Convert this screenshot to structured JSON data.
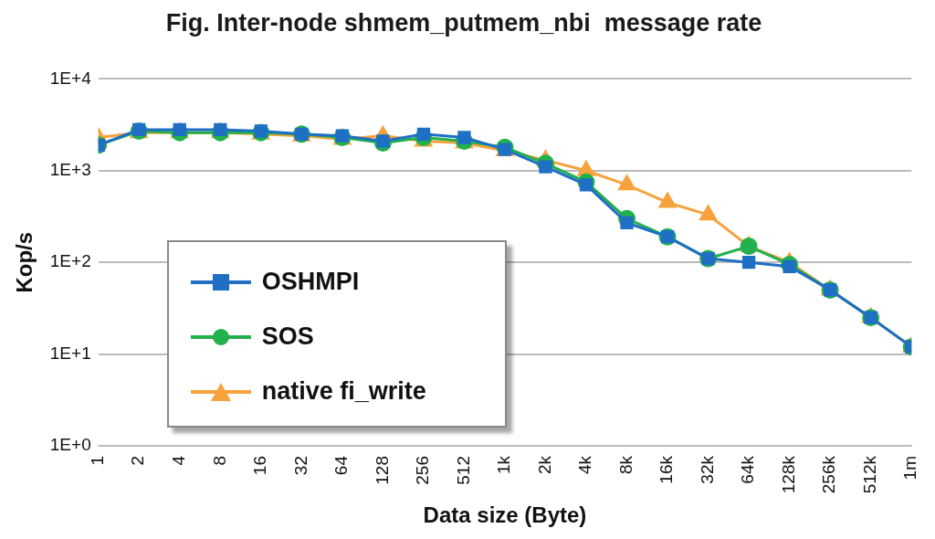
{
  "chart_data": {
    "type": "line",
    "title": "Fig. Inter-node shmem_putmem_nbi  message rate",
    "x_label": "Data size (Byte)",
    "y_label": "Kop/s",
    "categories": [
      "1",
      "2",
      "4",
      "8",
      "16",
      "32",
      "64",
      "128",
      "256",
      "512",
      "1k",
      "2k",
      "4k",
      "8k",
      "16k",
      "32k",
      "64k",
      "128k",
      "256k",
      "512k",
      "1m"
    ],
    "series": [
      {
        "name": "OSHMPI",
        "color": "#1f6fc5",
        "marker": "square",
        "values": [
          1900,
          2800,
          2800,
          2800,
          2700,
          2500,
          2400,
          2100,
          2500,
          2300,
          1700,
          1100,
          700,
          270,
          190,
          110,
          100,
          90,
          50,
          25,
          12
        ]
      },
      {
        "name": "SOS",
        "color": "#22b14c",
        "marker": "circle",
        "values": [
          1900,
          2700,
          2600,
          2600,
          2600,
          2500,
          2300,
          2000,
          2300,
          2100,
          1800,
          1200,
          750,
          300,
          190,
          110,
          150,
          95,
          50,
          25,
          12
        ]
      },
      {
        "name": "native fi_write",
        "color": "#f7a23c",
        "marker": "triangle",
        "values": [
          2300,
          2600,
          2600,
          2600,
          2500,
          2400,
          2200,
          2400,
          2100,
          2000,
          1650,
          1300,
          1000,
          700,
          450,
          330,
          150,
          100,
          50,
          25,
          12
        ]
      }
    ],
    "log": "y",
    "ylim": [
      1,
      10000
    ],
    "yticks": [
      {
        "value": 1,
        "label": "1E+0"
      },
      {
        "value": 10,
        "label": "1E+1"
      },
      {
        "value": 100,
        "label": "1E+2"
      },
      {
        "value": 1000,
        "label": "1E+3"
      },
      {
        "value": 10000,
        "label": "1E+4"
      }
    ],
    "grid": true,
    "legend": "lower left"
  }
}
